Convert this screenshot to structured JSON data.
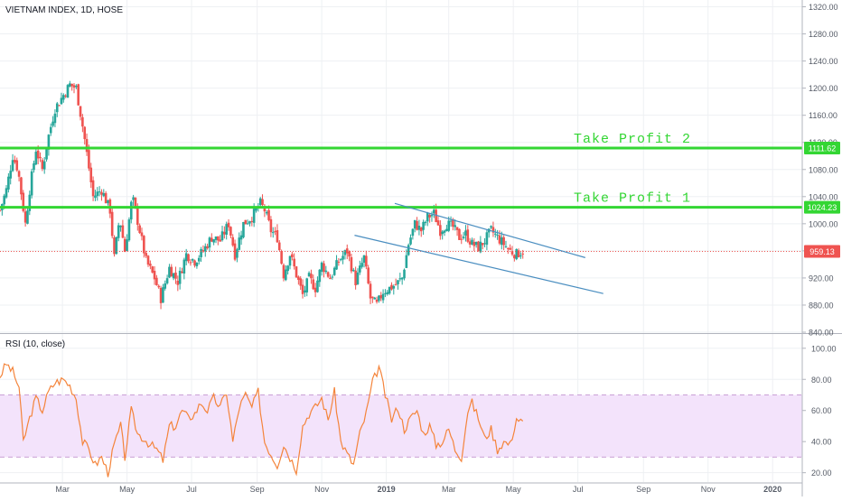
{
  "chart_data": [
    {
      "type": "candlestick",
      "title": "VIETNAM INDEX, 1D, HOSE",
      "ylim": [
        840,
        1330
      ],
      "y_ticks": [
        "1320.00",
        "1280.00",
        "1240.00",
        "1200.00",
        "1160.00",
        "1120.00",
        "1080.00",
        "1040.00",
        "1000.00",
        "960.00",
        "920.00",
        "880.00",
        "840.00"
      ],
      "y_tick_values": [
        1320,
        1280,
        1240,
        1200,
        1160,
        1120,
        1080,
        1040,
        1000,
        960,
        920,
        880,
        840
      ],
      "x_ticks": [
        "Mar",
        "May",
        "Jul",
        "Sep",
        "Nov",
        "2019",
        "Mar",
        "May",
        "Jul",
        "Sep",
        "Nov",
        "2020"
      ],
      "x_tick_days": [
        59,
        120,
        181,
        243,
        304,
        365,
        424,
        485,
        546,
        608,
        669,
        730
      ],
      "x_range_days": [
        0,
        758
      ],
      "anchors": [
        [
          0,
          1020
        ],
        [
          6,
          1050
        ],
        [
          12,
          1100
        ],
        [
          17,
          1080
        ],
        [
          24,
          1000
        ],
        [
          28,
          1050
        ],
        [
          34,
          1110
        ],
        [
          40,
          1080
        ],
        [
          46,
          1130
        ],
        [
          52,
          1170
        ],
        [
          60,
          1190
        ],
        [
          66,
          1205
        ],
        [
          72,
          1200
        ],
        [
          79,
          1135
        ],
        [
          88,
          1040
        ],
        [
          96,
          1050
        ],
        [
          104,
          1020
        ],
        [
          108,
          950
        ],
        [
          113,
          1010
        ],
        [
          118,
          960
        ],
        [
          125,
          1040
        ],
        [
          132,
          990
        ],
        [
          138,
          945
        ],
        [
          146,
          920
        ],
        [
          152,
          890
        ],
        [
          160,
          935
        ],
        [
          168,
          915
        ],
        [
          176,
          955
        ],
        [
          184,
          945
        ],
        [
          192,
          960
        ],
        [
          200,
          980
        ],
        [
          208,
          975
        ],
        [
          216,
          1000
        ],
        [
          222,
          955
        ],
        [
          230,
          1000
        ],
        [
          238,
          1010
        ],
        [
          246,
          1030
        ],
        [
          250,
          1020
        ],
        [
          256,
          990
        ],
        [
          262,
          980
        ],
        [
          268,
          925
        ],
        [
          274,
          955
        ],
        [
          280,
          925
        ],
        [
          286,
          895
        ],
        [
          292,
          920
        ],
        [
          298,
          905
        ],
        [
          304,
          940
        ],
        [
          312,
          920
        ],
        [
          320,
          945
        ],
        [
          328,
          960
        ],
        [
          336,
          915
        ],
        [
          344,
          950
        ],
        [
          350,
          890
        ],
        [
          356,
          880
        ],
        [
          362,
          900
        ],
        [
          368,
          905
        ],
        [
          374,
          910
        ],
        [
          380,
          920
        ],
        [
          386,
          970
        ],
        [
          392,
          1000
        ],
        [
          398,
          990
        ],
        [
          404,
          1010
        ],
        [
          410,
          1015
        ],
        [
          416,
          990
        ],
        [
          422,
          1000
        ],
        [
          428,
          995
        ],
        [
          434,
          980
        ],
        [
          440,
          985
        ],
        [
          446,
          970
        ],
        [
          452,
          965
        ],
        [
          458,
          975
        ],
        [
          464,
          990
        ],
        [
          470,
          980
        ],
        [
          476,
          970
        ],
        [
          482,
          960
        ],
        [
          488,
          955
        ],
        [
          494,
          960
        ]
      ],
      "last_price": 959.13,
      "last_price_label": "959.13",
      "horizontal_lines": [
        {
          "name": "Take Profit 2",
          "value": 1111.62,
          "label": "Take Profit 2",
          "price_label": "1111.62",
          "color": "#33d633"
        },
        {
          "name": "Take Profit 1",
          "value": 1024.23,
          "label": "Take Profit 1",
          "price_label": "1024.23",
          "color": "#33d633"
        }
      ],
      "channel_lines": [
        {
          "start": [
            373,
            1030
          ],
          "end": [
            553,
            950
          ],
          "color": "#4a8ec0"
        },
        {
          "start": [
            335,
            983
          ],
          "end": [
            570,
            897
          ],
          "color": "#4a8ec0"
        }
      ],
      "colors": {
        "up": "#26a69a",
        "down": "#ef5350"
      }
    },
    {
      "type": "line",
      "title": "RSI (10, close)",
      "ylim": [
        14,
        108
      ],
      "y_ticks": [
        "100.00",
        "80.00",
        "60.00",
        "40.00",
        "20.00"
      ],
      "y_tick_values": [
        100,
        80,
        60,
        40,
        20
      ],
      "band": [
        30,
        70
      ],
      "anchors": [
        [
          0,
          82
        ],
        [
          6,
          90
        ],
        [
          12,
          85
        ],
        [
          18,
          75
        ],
        [
          22,
          40
        ],
        [
          28,
          55
        ],
        [
          34,
          68
        ],
        [
          40,
          60
        ],
        [
          46,
          72
        ],
        [
          52,
          78
        ],
        [
          60,
          80
        ],
        [
          66,
          76
        ],
        [
          72,
          68
        ],
        [
          78,
          40
        ],
        [
          84,
          35
        ],
        [
          90,
          25
        ],
        [
          96,
          30
        ],
        [
          102,
          20
        ],
        [
          108,
          38
        ],
        [
          114,
          50
        ],
        [
          118,
          30
        ],
        [
          124,
          60
        ],
        [
          130,
          45
        ],
        [
          136,
          42
        ],
        [
          142,
          38
        ],
        [
          148,
          35
        ],
        [
          154,
          28
        ],
        [
          160,
          50
        ],
        [
          166,
          50
        ],
        [
          172,
          60
        ],
        [
          178,
          55
        ],
        [
          184,
          58
        ],
        [
          190,
          65
        ],
        [
          196,
          60
        ],
        [
          202,
          68
        ],
        [
          208,
          62
        ],
        [
          214,
          72
        ],
        [
          220,
          40
        ],
        [
          226,
          62
        ],
        [
          232,
          70
        ],
        [
          238,
          62
        ],
        [
          244,
          72
        ],
        [
          250,
          40
        ],
        [
          256,
          32
        ],
        [
          262,
          25
        ],
        [
          268,
          38
        ],
        [
          274,
          30
        ],
        [
          280,
          22
        ],
        [
          286,
          50
        ],
        [
          292,
          58
        ],
        [
          298,
          62
        ],
        [
          304,
          68
        ],
        [
          310,
          54
        ],
        [
          316,
          72
        ],
        [
          322,
          40
        ],
        [
          328,
          32
        ],
        [
          334,
          25
        ],
        [
          340,
          45
        ],
        [
          346,
          58
        ],
        [
          352,
          78
        ],
        [
          358,
          88
        ],
        [
          364,
          70
        ],
        [
          370,
          54
        ],
        [
          376,
          62
        ],
        [
          382,
          48
        ],
        [
          388,
          55
        ],
        [
          394,
          60
        ],
        [
          400,
          45
        ],
        [
          406,
          50
        ],
        [
          412,
          38
        ],
        [
          418,
          40
        ],
        [
          424,
          48
        ],
        [
          430,
          35
        ],
        [
          436,
          30
        ],
        [
          442,
          60
        ],
        [
          446,
          65
        ],
        [
          452,
          55
        ],
        [
          458,
          42
        ],
        [
          464,
          48
        ],
        [
          470,
          35
        ],
        [
          476,
          40
        ],
        [
          482,
          38
        ],
        [
          488,
          55
        ],
        [
          494,
          52
        ]
      ],
      "color": "#f4843b"
    }
  ]
}
